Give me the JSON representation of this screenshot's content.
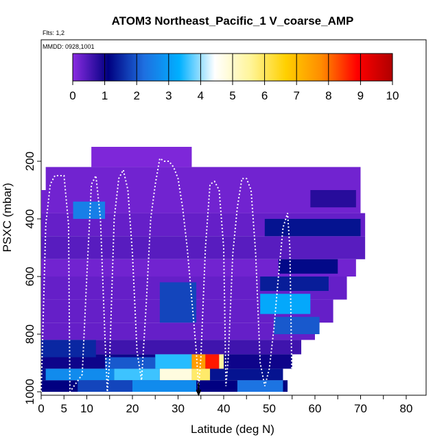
{
  "chart_data": {
    "type": "heatmap",
    "title": "ATOM3 Northeast_Pacific_1 V_coarse_AMP",
    "flights_label": "Flts: 1,2",
    "date_label": "MMDD: 0928,1001",
    "xlabel": "Latitude (deg N)",
    "ylabel": "PSXC (mbar)",
    "xlim": [
      0,
      84
    ],
    "ylim": [
      1000,
      0
    ],
    "x_ticks": [
      0,
      5,
      10,
      20,
      30,
      40,
      50,
      60,
      70,
      80
    ],
    "y_ticks": [
      200,
      400,
      600,
      800,
      1000
    ],
    "colorbar": {
      "range": [
        0,
        10
      ],
      "ticks": [
        0,
        1,
        2,
        3,
        4,
        5,
        6,
        7,
        8,
        9,
        10
      ],
      "colors": [
        "#8a2be2",
        "#000080",
        "#1e6fe0",
        "#00b0ff",
        "#ffffff",
        "#fff59a",
        "#ffd000",
        "#ff8c00",
        "#ff0000",
        "#b00000"
      ]
    },
    "surface_marker_lat": 34.5,
    "cells": [
      {
        "lat": [
          11,
          33
        ],
        "p": [
          150,
          220
        ],
        "v": 0.1
      },
      {
        "lat": [
          1,
          70
        ],
        "p": [
          220,
          300
        ],
        "v": 0.2
      },
      {
        "lat": [
          0,
          70
        ],
        "p": [
          300,
          380
        ],
        "v": 0.2
      },
      {
        "lat": [
          0,
          71
        ],
        "p": [
          380,
          460
        ],
        "v": 0.3
      },
      {
        "lat": [
          0,
          71
        ],
        "p": [
          460,
          540
        ],
        "v": 0.4
      },
      {
        "lat": [
          0,
          69
        ],
        "p": [
          540,
          600
        ],
        "v": 0.2
      },
      {
        "lat": [
          0,
          67
        ],
        "p": [
          600,
          680
        ],
        "v": 0.3
      },
      {
        "lat": [
          0,
          64
        ],
        "p": [
          680,
          760
        ],
        "v": 0.3
      },
      {
        "lat": [
          0,
          60
        ],
        "p": [
          760,
          820
        ],
        "v": 0.3
      },
      {
        "lat": [
          0,
          57
        ],
        "p": [
          820,
          870
        ],
        "v": 0.6
      },
      {
        "lat": [
          0,
          55
        ],
        "p": [
          870,
          920
        ],
        "v": 1.0
      },
      {
        "lat": [
          0,
          53
        ],
        "p": [
          920,
          960
        ],
        "v": 1.3
      },
      {
        "lat": [
          0,
          54
        ],
        "p": [
          960,
          1000
        ],
        "v": 1.1
      },
      {
        "lat": [
          7,
          14
        ],
        "p": [
          340,
          400
        ],
        "v": 2.5
      },
      {
        "lat": [
          59,
          69
        ],
        "p": [
          300,
          360
        ],
        "v": 0.8
      },
      {
        "lat": [
          49,
          70
        ],
        "p": [
          400,
          460
        ],
        "v": 1.3
      },
      {
        "lat": [
          52,
          65
        ],
        "p": [
          540,
          590
        ],
        "v": 1.2
      },
      {
        "lat": [
          48,
          63
        ],
        "p": [
          600,
          650
        ],
        "v": 1.4
      },
      {
        "lat": [
          48,
          59
        ],
        "p": [
          660,
          730
        ],
        "v": 3.2
      },
      {
        "lat": [
          51,
          61
        ],
        "p": [
          740,
          800
        ],
        "v": 2.0
      },
      {
        "lat": [
          26,
          34
        ],
        "p": [
          620,
          760
        ],
        "v": 1.8
      },
      {
        "lat": [
          0,
          12
        ],
        "p": [
          820,
          880
        ],
        "v": 1.5
      },
      {
        "lat": [
          14,
          25
        ],
        "p": [
          880,
          920
        ],
        "v": 2.0
      },
      {
        "lat": [
          25,
          33
        ],
        "p": [
          870,
          920
        ],
        "v": 3.5
      },
      {
        "lat": [
          33,
          36
        ],
        "p": [
          870,
          920
        ],
        "v": 7.5
      },
      {
        "lat": [
          36,
          39
        ],
        "p": [
          870,
          920
        ],
        "v": 8.7
      },
      {
        "lat": [
          39,
          40
        ],
        "p": [
          870,
          920
        ],
        "v": 5.5
      },
      {
        "lat": [
          1,
          16
        ],
        "p": [
          920,
          960
        ],
        "v": 2.7
      },
      {
        "lat": [
          16,
          26
        ],
        "p": [
          920,
          960
        ],
        "v": 3.6
      },
      {
        "lat": [
          26,
          33
        ],
        "p": [
          920,
          960
        ],
        "v": 4.8
      },
      {
        "lat": [
          33,
          37
        ],
        "p": [
          920,
          960
        ],
        "v": 5.9
      },
      {
        "lat": [
          8,
          20
        ],
        "p": [
          960,
          1000
        ],
        "v": 1.8
      },
      {
        "lat": [
          20,
          34
        ],
        "p": [
          960,
          1000
        ],
        "v": 2.7
      },
      {
        "lat": [
          43,
          53
        ],
        "p": [
          960,
          1000
        ],
        "v": 2.3
      }
    ],
    "flight_track": [
      [
        0,
        1000
      ],
      [
        1,
        420
      ],
      [
        2,
        280
      ],
      [
        3,
        250
      ],
      [
        4,
        250
      ],
      [
        5,
        250
      ],
      [
        6,
        420
      ],
      [
        6.3,
        1000
      ],
      [
        9,
        940
      ],
      [
        10,
        600
      ],
      [
        11,
        280
      ],
      [
        12,
        250
      ],
      [
        13,
        400
      ],
      [
        14,
        820
      ],
      [
        14.5,
        1000
      ],
      [
        15,
        890
      ],
      [
        16,
        400
      ],
      [
        17,
        260
      ],
      [
        18,
        230
      ],
      [
        19,
        300
      ],
      [
        20,
        520
      ],
      [
        21,
        860
      ],
      [
        22,
        960
      ],
      [
        23,
        700
      ],
      [
        24,
        400
      ],
      [
        25,
        280
      ],
      [
        26,
        190
      ],
      [
        27,
        200
      ],
      [
        28,
        200
      ],
      [
        29,
        220
      ],
      [
        30,
        260
      ],
      [
        31,
        360
      ],
      [
        32,
        500
      ],
      [
        33,
        680
      ],
      [
        34,
        860
      ],
      [
        34.5,
        990
      ],
      [
        35,
        880
      ],
      [
        36,
        500
      ],
      [
        37,
        280
      ],
      [
        38,
        270
      ],
      [
        39,
        300
      ],
      [
        40,
        500
      ],
      [
        40.5,
        980
      ],
      [
        41,
        880
      ],
      [
        42,
        520
      ],
      [
        43,
        360
      ],
      [
        44,
        260
      ],
      [
        45,
        260
      ],
      [
        46,
        300
      ],
      [
        47,
        520
      ],
      [
        48,
        900
      ],
      [
        49,
        980
      ],
      [
        50,
        920
      ],
      [
        51,
        780
      ],
      [
        52,
        600
      ],
      [
        53,
        430
      ],
      [
        54,
        380
      ],
      [
        54.5,
        500
      ],
      [
        55,
        1000
      ]
    ]
  }
}
